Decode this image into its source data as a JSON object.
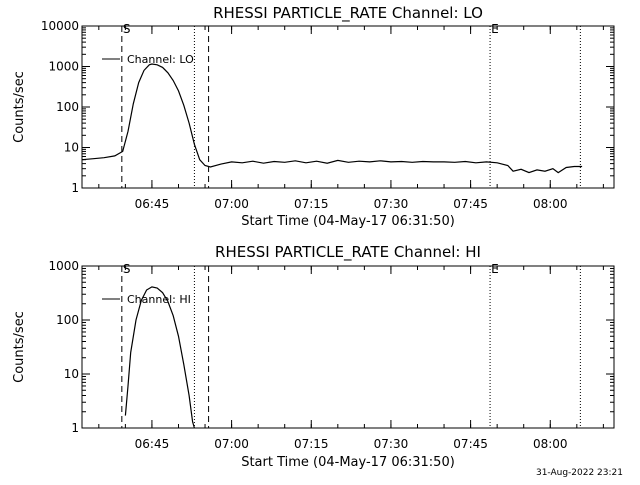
{
  "chart_data": [
    {
      "type": "line",
      "title": "RHESSI PARTICLE_RATE Channel: LO",
      "xlabel": "Start Time (04-May-17 06:31:50)",
      "ylabel": "Counts/sec",
      "yscale": "log",
      "ylim": [
        1,
        10000
      ],
      "xlim": [
        "06:31:50",
        "08:12:00"
      ],
      "y_ticks": [
        "1",
        "10",
        "100",
        "1000",
        "10000"
      ],
      "x_ticks": [
        "06:45",
        "07:00",
        "07:15",
        "07:30",
        "07:45",
        "08:00"
      ],
      "legend": "Channel: LO",
      "markers": [
        {
          "label": "S",
          "time": "06:39:20",
          "style": "dashed"
        },
        {
          "label": "",
          "time": "06:53:00",
          "style": "dotted"
        },
        {
          "label": "",
          "time": "06:55:40",
          "style": "dashed"
        },
        {
          "label": "E",
          "time": "07:48:40",
          "style": "dotted"
        },
        {
          "label": "",
          "time": "08:05:40",
          "style": "dotted"
        }
      ],
      "series": [
        {
          "points": [
            [
              "06:31:50",
              5
            ],
            [
              "06:34:00",
              5.3
            ],
            [
              "06:36:00",
              5.6
            ],
            [
              "06:38:00",
              6.2
            ],
            [
              "06:39:30",
              8
            ],
            [
              "06:40:30",
              25
            ],
            [
              "06:41:30",
              120
            ],
            [
              "06:42:30",
              400
            ],
            [
              "06:43:30",
              800
            ],
            [
              "06:44:30",
              1100
            ],
            [
              "06:45:00",
              1150
            ],
            [
              "06:46:00",
              1100
            ],
            [
              "06:47:00",
              950
            ],
            [
              "06:48:00",
              700
            ],
            [
              "06:49:00",
              450
            ],
            [
              "06:50:00",
              250
            ],
            [
              "06:51:00",
              110
            ],
            [
              "06:52:00",
              40
            ],
            [
              "06:53:00",
              12
            ],
            [
              "06:54:00",
              5
            ],
            [
              "06:55:00",
              3.6
            ],
            [
              "06:56:00",
              3.3
            ],
            [
              "06:58:00",
              3.9
            ],
            [
              "07:00:00",
              4.4
            ],
            [
              "07:02:00",
              4.2
            ],
            [
              "07:04:00",
              4.6
            ],
            [
              "07:06:00",
              4.1
            ],
            [
              "07:08:00",
              4.5
            ],
            [
              "07:10:00",
              4.3
            ],
            [
              "07:12:00",
              4.7
            ],
            [
              "07:14:00",
              4.2
            ],
            [
              "07:16:00",
              4.6
            ],
            [
              "07:18:00",
              4.1
            ],
            [
              "07:20:00",
              4.8
            ],
            [
              "07:22:00",
              4.3
            ],
            [
              "07:24:00",
              4.6
            ],
            [
              "07:26:00",
              4.4
            ],
            [
              "07:28:00",
              4.7
            ],
            [
              "07:30:00",
              4.4
            ],
            [
              "07:32:00",
              4.5
            ],
            [
              "07:34:00",
              4.3
            ],
            [
              "07:36:00",
              4.5
            ],
            [
              "07:38:00",
              4.4
            ],
            [
              "07:40:00",
              4.4
            ],
            [
              "07:42:00",
              4.3
            ],
            [
              "07:44:00",
              4.5
            ],
            [
              "07:46:00",
              4.2
            ],
            [
              "07:48:00",
              4.4
            ],
            [
              "07:50:00",
              4.2
            ],
            [
              "07:52:00",
              3.6
            ],
            [
              "07:53:00",
              2.6
            ],
            [
              "07:54:30",
              2.9
            ],
            [
              "07:56:00",
              2.4
            ],
            [
              "07:57:30",
              2.8
            ],
            [
              "07:59:00",
              2.6
            ],
            [
              "08:00:30",
              3.0
            ],
            [
              "08:01:30",
              2.4
            ],
            [
              "08:03:00",
              3.2
            ],
            [
              "08:04:30",
              3.4
            ],
            [
              "08:06:00",
              3.4
            ]
          ]
        }
      ]
    },
    {
      "type": "line",
      "title": "RHESSI PARTICLE_RATE Channel: HI",
      "xlabel": "Start Time (04-May-17 06:31:50)",
      "ylabel": "Counts/sec",
      "yscale": "log",
      "ylim": [
        1,
        1000
      ],
      "xlim": [
        "06:31:50",
        "08:12:00"
      ],
      "y_ticks": [
        "1",
        "10",
        "100",
        "1000"
      ],
      "x_ticks": [
        "06:45",
        "07:00",
        "07:15",
        "07:30",
        "07:45",
        "08:00"
      ],
      "legend": "Channel: HI",
      "markers": [
        {
          "label": "S",
          "time": "06:39:20",
          "style": "dashed"
        },
        {
          "label": "",
          "time": "06:53:00",
          "style": "dotted"
        },
        {
          "label": "",
          "time": "06:55:40",
          "style": "dashed"
        },
        {
          "label": "E",
          "time": "07:48:40",
          "style": "dotted"
        },
        {
          "label": "",
          "time": "08:05:40",
          "style": "dotted"
        }
      ],
      "series": [
        {
          "points": [
            [
              "06:40:00",
              1.7
            ],
            [
              "06:40:30",
              6
            ],
            [
              "06:41:00",
              25
            ],
            [
              "06:42:00",
              100
            ],
            [
              "06:43:00",
              230
            ],
            [
              "06:44:00",
              360
            ],
            [
              "06:45:00",
              410
            ],
            [
              "06:46:00",
              390
            ],
            [
              "06:47:00",
              320
            ],
            [
              "06:48:00",
              220
            ],
            [
              "06:49:00",
              120
            ],
            [
              "06:50:00",
              50
            ],
            [
              "06:51:00",
              15
            ],
            [
              "06:52:00",
              4
            ],
            [
              "06:52:40",
              1.3
            ],
            [
              "06:53:00",
              1
            ]
          ]
        }
      ]
    }
  ],
  "footer": {
    "timestamp": "31-Aug-2022 23:21"
  }
}
